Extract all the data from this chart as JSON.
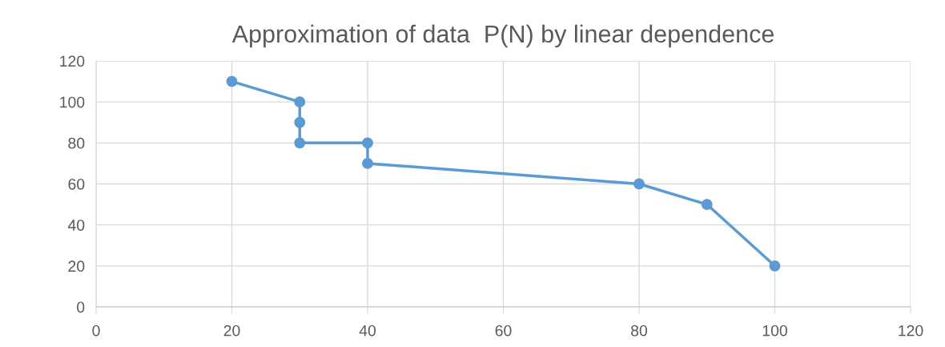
{
  "chart_data": {
    "type": "line",
    "title": "Approximation of data  P(N) by linear dependence",
    "series": [
      {
        "color": "#5b9bd5",
        "x": [
          20,
          30,
          30,
          30,
          40,
          40,
          80,
          90,
          100
        ],
        "values": [
          110,
          100,
          90,
          80,
          80,
          70,
          60,
          50,
          20
        ]
      }
    ],
    "xlim": [
      0,
      120
    ],
    "xticks": [
      0,
      20,
      40,
      60,
      80,
      100,
      120
    ],
    "ylim": [
      0,
      120
    ],
    "yticks": [
      0,
      20,
      40,
      60,
      80,
      100,
      120
    ],
    "grid": true,
    "marker": "circle",
    "line_style": "solid"
  }
}
